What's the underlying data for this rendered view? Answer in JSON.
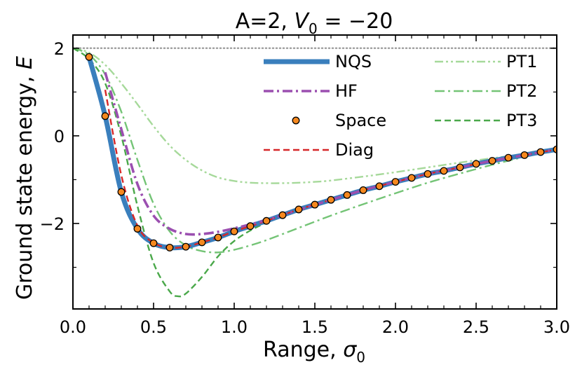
{
  "chart_data": {
    "type": "line",
    "title_prefix": "A=2, ",
    "title_var": "V",
    "title_sub": "0",
    "title_suffix": " = −20",
    "xlabel_prefix": "Range, ",
    "xlabel_var": "σ",
    "xlabel_sub": "0",
    "ylabel_prefix": "Ground state energy, ",
    "ylabel_var": "E",
    "xlim": [
      0.0,
      3.0
    ],
    "ylim": [
      -3.95,
      2.3
    ],
    "xticks": [
      0.0,
      0.5,
      1.0,
      1.5,
      2.0,
      2.5,
      3.0
    ],
    "xtick_labels": [
      "0.0",
      "0.5",
      "1.0",
      "1.5",
      "2.0",
      "2.5",
      "3.0"
    ],
    "yticks": [
      2,
      0,
      -2
    ],
    "ytick_labels": [
      "2",
      "0",
      "−2"
    ],
    "reference_line_y": 2.0,
    "legend_position": "upper-right",
    "series": [
      {
        "name": "NQS",
        "color": "#3a7fbd",
        "style": "solid-thick",
        "x": [
          0.1,
          0.2,
          0.3,
          0.4,
          0.5,
          0.6,
          0.7,
          0.8,
          0.9,
          1.0,
          1.1,
          1.2,
          1.3,
          1.4,
          1.5,
          1.6,
          1.7,
          1.8,
          1.9,
          2.0,
          2.1,
          2.2,
          2.3,
          2.4,
          2.5,
          2.6,
          2.7,
          2.8,
          2.9,
          3.0
        ],
        "y": [
          1.8,
          0.45,
          -1.28,
          -2.12,
          -2.45,
          -2.55,
          -2.53,
          -2.43,
          -2.32,
          -2.18,
          -2.06,
          -1.94,
          -1.81,
          -1.68,
          -1.57,
          -1.46,
          -1.35,
          -1.24,
          -1.15,
          -1.05,
          -0.96,
          -0.87,
          -0.8,
          -0.72,
          -0.64,
          -0.57,
          -0.5,
          -0.44,
          -0.37,
          -0.31
        ]
      },
      {
        "name": "HF",
        "color": "#9b4fb0",
        "style": "dashdot",
        "x": [
          0.2,
          0.3,
          0.4,
          0.5,
          0.6,
          0.7,
          0.8,
          0.9,
          1.0,
          1.1,
          1.2,
          1.4,
          1.6,
          1.8,
          2.0,
          2.2,
          2.4,
          2.6,
          2.8,
          3.0
        ],
        "y": [
          1.45,
          0.15,
          -1.1,
          -1.82,
          -2.12,
          -2.24,
          -2.24,
          -2.19,
          -2.11,
          -2.02,
          -1.92,
          -1.69,
          -1.46,
          -1.24,
          -1.05,
          -0.87,
          -0.72,
          -0.57,
          -0.44,
          -0.31
        ]
      },
      {
        "name": "Space",
        "color": "#f5881f",
        "style": "markers",
        "x": [
          0.1,
          0.2,
          0.3,
          0.4,
          0.5,
          0.6,
          0.7,
          0.8,
          0.9,
          1.0,
          1.1,
          1.2,
          1.3,
          1.4,
          1.5,
          1.6,
          1.7,
          1.8,
          1.9,
          2.0,
          2.1,
          2.2,
          2.3,
          2.4,
          2.5,
          2.6,
          2.7,
          2.8,
          2.9,
          3.0
        ],
        "y": [
          1.8,
          0.45,
          -1.28,
          -2.12,
          -2.45,
          -2.55,
          -2.53,
          -2.43,
          -2.32,
          -2.18,
          -2.06,
          -1.94,
          -1.81,
          -1.68,
          -1.57,
          -1.46,
          -1.35,
          -1.24,
          -1.15,
          -1.05,
          -0.96,
          -0.87,
          -0.8,
          -0.72,
          -0.64,
          -0.57,
          -0.5,
          -0.44,
          -0.37,
          -0.31
        ]
      },
      {
        "name": "Diag",
        "color": "#d62728",
        "style": "dashed",
        "x": [
          0.2,
          0.3,
          0.4,
          0.5,
          0.6,
          0.7,
          0.8,
          0.9,
          1.0,
          1.2,
          1.4,
          1.6,
          1.8,
          2.0,
          2.2,
          2.4,
          2.6,
          2.8,
          3.0
        ],
        "y": [
          1.05,
          -0.9,
          -2.05,
          -2.44,
          -2.55,
          -2.53,
          -2.43,
          -2.32,
          -2.18,
          -1.94,
          -1.68,
          -1.46,
          -1.24,
          -1.05,
          -0.87,
          -0.72,
          -0.57,
          -0.44,
          -0.31
        ]
      },
      {
        "name": "PT1",
        "color": "#a6d99a",
        "style": "dashdotdot",
        "x": [
          0.0,
          0.1,
          0.2,
          0.3,
          0.4,
          0.5,
          0.6,
          0.7,
          0.8,
          0.9,
          1.0,
          1.1,
          1.2,
          1.3,
          1.4,
          1.5,
          1.6,
          1.8,
          2.0,
          2.2,
          2.4,
          2.6,
          2.8,
          3.0
        ],
        "y": [
          2.0,
          1.9,
          1.62,
          1.2,
          0.72,
          0.22,
          -0.22,
          -0.55,
          -0.79,
          -0.95,
          -1.03,
          -1.07,
          -1.08,
          -1.08,
          -1.07,
          -1.05,
          -1.02,
          -0.93,
          -0.83,
          -0.72,
          -0.61,
          -0.51,
          -0.42,
          -0.32
        ]
      },
      {
        "name": "PT2",
        "color": "#74c476",
        "style": "dashdot",
        "x": [
          0.0,
          0.1,
          0.2,
          0.3,
          0.4,
          0.5,
          0.6,
          0.7,
          0.8,
          0.9,
          1.0,
          1.1,
          1.2,
          1.4,
          1.6,
          1.8,
          2.0,
          2.2,
          2.4,
          2.6,
          2.8,
          3.0
        ],
        "y": [
          2.0,
          1.85,
          1.4,
          0.55,
          -0.55,
          -1.55,
          -2.18,
          -2.5,
          -2.63,
          -2.66,
          -2.6,
          -2.5,
          -2.38,
          -2.1,
          -1.82,
          -1.56,
          -1.31,
          -1.07,
          -0.86,
          -0.66,
          -0.48,
          -0.32
        ]
      },
      {
        "name": "PT3",
        "color": "#4aa84a",
        "style": "dashed",
        "x": [
          0.0,
          0.1,
          0.2,
          0.3,
          0.4,
          0.5,
          0.6,
          0.65,
          0.7,
          0.8,
          0.9,
          1.0,
          1.1,
          1.2,
          1.3,
          1.4,
          1.6,
          1.8,
          2.0,
          2.2,
          2.4,
          2.6,
          2.8,
          3.0
        ],
        "y": [
          2.0,
          1.75,
          1.2,
          0.0,
          -1.6,
          -2.9,
          -3.55,
          -3.66,
          -3.6,
          -3.22,
          -2.75,
          -2.4,
          -2.16,
          -1.98,
          -1.83,
          -1.7,
          -1.48,
          -1.27,
          -1.07,
          -0.89,
          -0.73,
          -0.58,
          -0.45,
          -0.32
        ]
      }
    ]
  }
}
